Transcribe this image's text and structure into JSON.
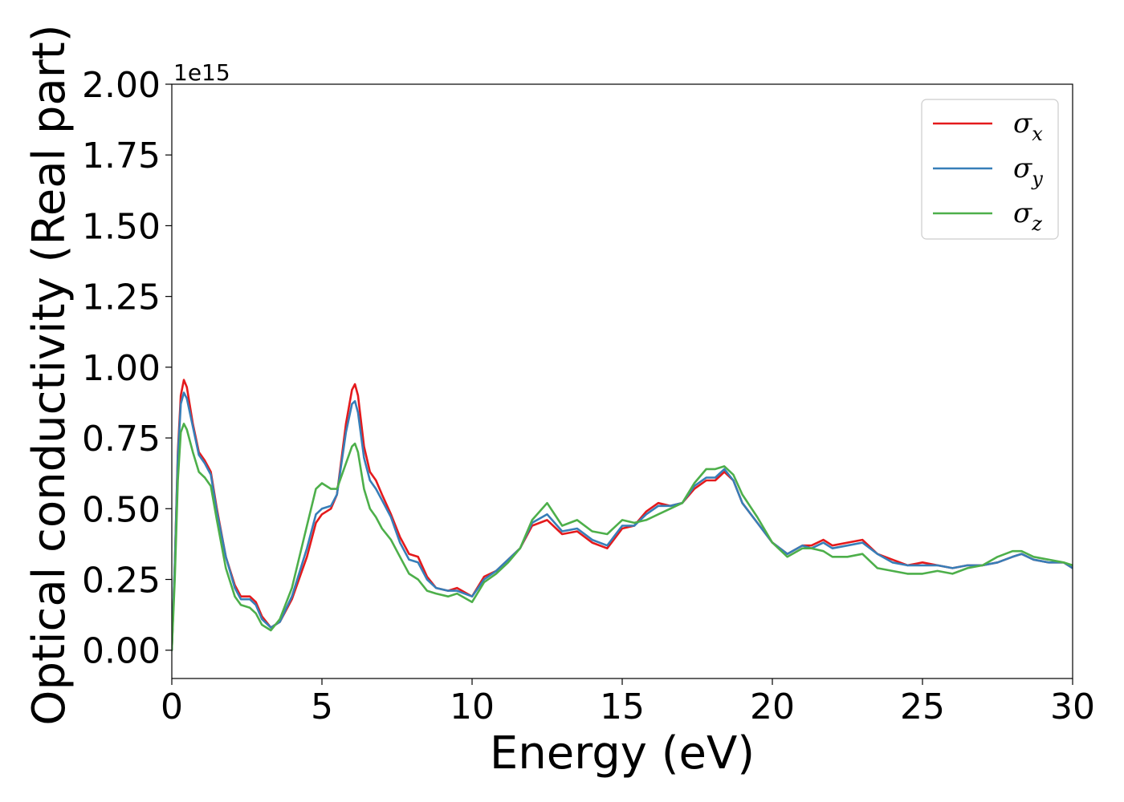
{
  "chart_data": {
    "type": "line",
    "xlabel": "Energy (eV)",
    "ylabel": "Optical conductivity (Real part)",
    "y_offset_label": "1e15",
    "xlim": [
      0,
      30
    ],
    "ylim": [
      -0.1,
      2.0
    ],
    "x_ticks": [
      0,
      5,
      10,
      15,
      20,
      25,
      30
    ],
    "x_tick_labels": [
      "0",
      "5",
      "10",
      "15",
      "20",
      "25",
      "30"
    ],
    "y_ticks": [
      0.0,
      0.25,
      0.5,
      0.75,
      1.0,
      1.25,
      1.5,
      1.75,
      2.0
    ],
    "y_tick_labels": [
      "0.00",
      "0.25",
      "0.50",
      "0.75",
      "1.00",
      "1.25",
      "1.50",
      "1.75",
      "2.00"
    ],
    "grid": false,
    "legend_position": "top-right",
    "series": [
      {
        "name": "σx",
        "name_base": "σ",
        "name_sub": "x",
        "color": "#e41a1c",
        "points": [
          [
            0,
            0
          ],
          [
            0.1,
            0.3
          ],
          [
            0.2,
            0.7
          ],
          [
            0.3,
            0.9
          ],
          [
            0.4,
            0.955
          ],
          [
            0.5,
            0.93
          ],
          [
            0.7,
            0.8
          ],
          [
            0.9,
            0.7
          ],
          [
            1.1,
            0.67
          ],
          [
            1.3,
            0.63
          ],
          [
            1.5,
            0.5
          ],
          [
            1.8,
            0.33
          ],
          [
            2.1,
            0.23
          ],
          [
            2.3,
            0.19
          ],
          [
            2.6,
            0.19
          ],
          [
            2.8,
            0.17
          ],
          [
            3.0,
            0.12
          ],
          [
            3.3,
            0.08
          ],
          [
            3.6,
            0.1
          ],
          [
            4.0,
            0.18
          ],
          [
            4.5,
            0.33
          ],
          [
            4.8,
            0.45
          ],
          [
            5.0,
            0.48
          ],
          [
            5.3,
            0.5
          ],
          [
            5.5,
            0.55
          ],
          [
            5.8,
            0.8
          ],
          [
            6.0,
            0.92
          ],
          [
            6.1,
            0.94
          ],
          [
            6.2,
            0.9
          ],
          [
            6.4,
            0.72
          ],
          [
            6.6,
            0.63
          ],
          [
            6.8,
            0.6
          ],
          [
            7.0,
            0.55
          ],
          [
            7.3,
            0.48
          ],
          [
            7.6,
            0.4
          ],
          [
            7.9,
            0.34
          ],
          [
            8.2,
            0.33
          ],
          [
            8.5,
            0.26
          ],
          [
            8.8,
            0.22
          ],
          [
            9.2,
            0.21
          ],
          [
            9.5,
            0.22
          ],
          [
            10.0,
            0.19
          ],
          [
            10.4,
            0.26
          ],
          [
            10.8,
            0.28
          ],
          [
            11.2,
            0.32
          ],
          [
            11.6,
            0.36
          ],
          [
            12.0,
            0.44
          ],
          [
            12.5,
            0.46
          ],
          [
            13.0,
            0.41
          ],
          [
            13.5,
            0.42
          ],
          [
            14.0,
            0.38
          ],
          [
            14.5,
            0.36
          ],
          [
            15.0,
            0.43
          ],
          [
            15.4,
            0.44
          ],
          [
            15.8,
            0.49
          ],
          [
            16.2,
            0.52
          ],
          [
            16.6,
            0.51
          ],
          [
            17.0,
            0.52
          ],
          [
            17.4,
            0.57
          ],
          [
            17.8,
            0.6
          ],
          [
            18.1,
            0.6
          ],
          [
            18.4,
            0.63
          ],
          [
            18.7,
            0.6
          ],
          [
            19.0,
            0.52
          ],
          [
            19.5,
            0.45
          ],
          [
            20.0,
            0.38
          ],
          [
            20.5,
            0.34
          ],
          [
            21.0,
            0.37
          ],
          [
            21.3,
            0.37
          ],
          [
            21.7,
            0.39
          ],
          [
            22.0,
            0.37
          ],
          [
            22.5,
            0.38
          ],
          [
            23.0,
            0.39
          ],
          [
            23.5,
            0.34
          ],
          [
            24.0,
            0.32
          ],
          [
            24.5,
            0.3
          ],
          [
            25.0,
            0.31
          ],
          [
            25.5,
            0.3
          ],
          [
            26.0,
            0.29
          ],
          [
            26.5,
            0.3
          ],
          [
            27.0,
            0.3
          ],
          [
            27.5,
            0.31
          ],
          [
            28.0,
            0.33
          ],
          [
            28.3,
            0.34
          ],
          [
            28.7,
            0.32
          ],
          [
            29.2,
            0.31
          ],
          [
            29.7,
            0.31
          ],
          [
            30.0,
            0.29
          ]
        ]
      },
      {
        "name": "σy",
        "name_base": "σ",
        "name_sub": "y",
        "color": "#377eb8",
        "points": [
          [
            0,
            0
          ],
          [
            0.1,
            0.3
          ],
          [
            0.2,
            0.68
          ],
          [
            0.3,
            0.87
          ],
          [
            0.4,
            0.91
          ],
          [
            0.5,
            0.89
          ],
          [
            0.7,
            0.79
          ],
          [
            0.9,
            0.69
          ],
          [
            1.1,
            0.66
          ],
          [
            1.3,
            0.62
          ],
          [
            1.5,
            0.49
          ],
          [
            1.8,
            0.33
          ],
          [
            2.1,
            0.22
          ],
          [
            2.3,
            0.18
          ],
          [
            2.6,
            0.18
          ],
          [
            2.8,
            0.16
          ],
          [
            3.0,
            0.11
          ],
          [
            3.3,
            0.08
          ],
          [
            3.6,
            0.1
          ],
          [
            4.0,
            0.19
          ],
          [
            4.5,
            0.36
          ],
          [
            4.8,
            0.48
          ],
          [
            5.0,
            0.5
          ],
          [
            5.3,
            0.51
          ],
          [
            5.5,
            0.55
          ],
          [
            5.8,
            0.77
          ],
          [
            6.0,
            0.87
          ],
          [
            6.1,
            0.88
          ],
          [
            6.2,
            0.84
          ],
          [
            6.4,
            0.68
          ],
          [
            6.6,
            0.6
          ],
          [
            6.8,
            0.57
          ],
          [
            7.0,
            0.53
          ],
          [
            7.3,
            0.47
          ],
          [
            7.6,
            0.38
          ],
          [
            7.9,
            0.32
          ],
          [
            8.2,
            0.31
          ],
          [
            8.5,
            0.25
          ],
          [
            8.8,
            0.22
          ],
          [
            9.2,
            0.21
          ],
          [
            9.5,
            0.21
          ],
          [
            10.0,
            0.19
          ],
          [
            10.4,
            0.25
          ],
          [
            10.8,
            0.28
          ],
          [
            11.2,
            0.32
          ],
          [
            11.6,
            0.36
          ],
          [
            12.0,
            0.45
          ],
          [
            12.5,
            0.48
          ],
          [
            13.0,
            0.42
          ],
          [
            13.5,
            0.43
          ],
          [
            14.0,
            0.39
          ],
          [
            14.5,
            0.37
          ],
          [
            15.0,
            0.44
          ],
          [
            15.4,
            0.44
          ],
          [
            15.8,
            0.48
          ],
          [
            16.2,
            0.51
          ],
          [
            16.6,
            0.51
          ],
          [
            17.0,
            0.52
          ],
          [
            17.4,
            0.58
          ],
          [
            17.8,
            0.61
          ],
          [
            18.1,
            0.61
          ],
          [
            18.4,
            0.64
          ],
          [
            18.7,
            0.6
          ],
          [
            19.0,
            0.52
          ],
          [
            19.5,
            0.45
          ],
          [
            20.0,
            0.38
          ],
          [
            20.5,
            0.34
          ],
          [
            21.0,
            0.37
          ],
          [
            21.3,
            0.36
          ],
          [
            21.7,
            0.38
          ],
          [
            22.0,
            0.36
          ],
          [
            22.5,
            0.37
          ],
          [
            23.0,
            0.38
          ],
          [
            23.5,
            0.34
          ],
          [
            24.0,
            0.31
          ],
          [
            24.5,
            0.3
          ],
          [
            25.0,
            0.3
          ],
          [
            25.5,
            0.3
          ],
          [
            26.0,
            0.29
          ],
          [
            26.5,
            0.3
          ],
          [
            27.0,
            0.3
          ],
          [
            27.5,
            0.31
          ],
          [
            28.0,
            0.33
          ],
          [
            28.3,
            0.34
          ],
          [
            28.7,
            0.32
          ],
          [
            29.2,
            0.31
          ],
          [
            29.7,
            0.31
          ],
          [
            30.0,
            0.29
          ]
        ]
      },
      {
        "name": "σz",
        "name_base": "σ",
        "name_sub": "z",
        "color": "#4daf4a",
        "points": [
          [
            0,
            0
          ],
          [
            0.1,
            0.25
          ],
          [
            0.2,
            0.6
          ],
          [
            0.3,
            0.77
          ],
          [
            0.4,
            0.8
          ],
          [
            0.5,
            0.78
          ],
          [
            0.7,
            0.7
          ],
          [
            0.9,
            0.63
          ],
          [
            1.1,
            0.61
          ],
          [
            1.3,
            0.58
          ],
          [
            1.5,
            0.46
          ],
          [
            1.8,
            0.29
          ],
          [
            2.1,
            0.19
          ],
          [
            2.3,
            0.16
          ],
          [
            2.6,
            0.15
          ],
          [
            2.8,
            0.13
          ],
          [
            3.0,
            0.09
          ],
          [
            3.3,
            0.07
          ],
          [
            3.6,
            0.11
          ],
          [
            4.0,
            0.22
          ],
          [
            4.5,
            0.44
          ],
          [
            4.8,
            0.57
          ],
          [
            5.0,
            0.59
          ],
          [
            5.3,
            0.57
          ],
          [
            5.5,
            0.57
          ],
          [
            5.8,
            0.66
          ],
          [
            6.0,
            0.72
          ],
          [
            6.1,
            0.73
          ],
          [
            6.2,
            0.7
          ],
          [
            6.4,
            0.57
          ],
          [
            6.6,
            0.5
          ],
          [
            6.8,
            0.47
          ],
          [
            7.0,
            0.43
          ],
          [
            7.3,
            0.39
          ],
          [
            7.6,
            0.33
          ],
          [
            7.9,
            0.27
          ],
          [
            8.2,
            0.25
          ],
          [
            8.5,
            0.21
          ],
          [
            8.8,
            0.2
          ],
          [
            9.2,
            0.19
          ],
          [
            9.5,
            0.2
          ],
          [
            10.0,
            0.17
          ],
          [
            10.4,
            0.24
          ],
          [
            10.8,
            0.27
          ],
          [
            11.2,
            0.31
          ],
          [
            11.6,
            0.36
          ],
          [
            12.0,
            0.46
          ],
          [
            12.5,
            0.52
          ],
          [
            13.0,
            0.44
          ],
          [
            13.5,
            0.46
          ],
          [
            14.0,
            0.42
          ],
          [
            14.5,
            0.41
          ],
          [
            15.0,
            0.46
          ],
          [
            15.4,
            0.45
          ],
          [
            15.8,
            0.46
          ],
          [
            16.2,
            0.48
          ],
          [
            16.6,
            0.5
          ],
          [
            17.0,
            0.52
          ],
          [
            17.4,
            0.59
          ],
          [
            17.8,
            0.64
          ],
          [
            18.1,
            0.64
          ],
          [
            18.4,
            0.65
          ],
          [
            18.7,
            0.62
          ],
          [
            19.0,
            0.55
          ],
          [
            19.5,
            0.47
          ],
          [
            20.0,
            0.38
          ],
          [
            20.5,
            0.33
          ],
          [
            21.0,
            0.36
          ],
          [
            21.3,
            0.36
          ],
          [
            21.7,
            0.35
          ],
          [
            22.0,
            0.33
          ],
          [
            22.5,
            0.33
          ],
          [
            23.0,
            0.34
          ],
          [
            23.5,
            0.29
          ],
          [
            24.0,
            0.28
          ],
          [
            24.5,
            0.27
          ],
          [
            25.0,
            0.27
          ],
          [
            25.5,
            0.28
          ],
          [
            26.0,
            0.27
          ],
          [
            26.5,
            0.29
          ],
          [
            27.0,
            0.3
          ],
          [
            27.5,
            0.33
          ],
          [
            28.0,
            0.35
          ],
          [
            28.3,
            0.35
          ],
          [
            28.7,
            0.33
          ],
          [
            29.2,
            0.32
          ],
          [
            29.7,
            0.31
          ],
          [
            30.0,
            0.3
          ]
        ]
      }
    ]
  },
  "colors": {
    "axis": "#000000",
    "legend_border": "#cccccc",
    "background": "#ffffff"
  }
}
